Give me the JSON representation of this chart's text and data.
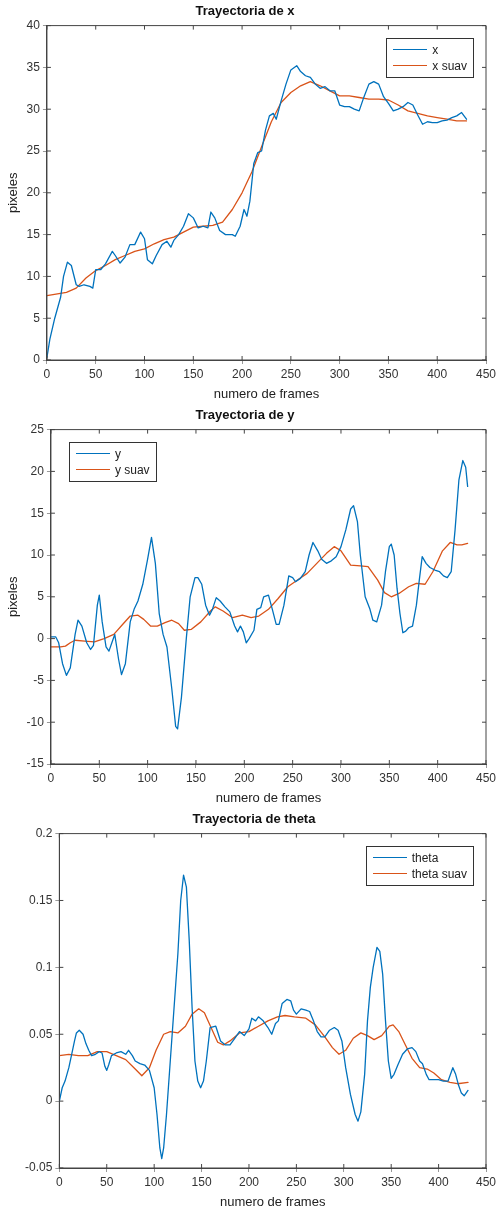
{
  "chart_data": [
    {
      "type": "line",
      "title": "Trayectoria de x",
      "xlabel": "numero de frames",
      "ylabel": "pixeles",
      "xlim": [
        0,
        450
      ],
      "xticks": [
        0,
        50,
        100,
        150,
        200,
        250,
        300,
        350,
        400,
        450
      ],
      "ylim": [
        0,
        40
      ],
      "yticks": [
        0,
        5,
        10,
        15,
        20,
        25,
        30,
        35,
        40
      ],
      "grid": false,
      "legend": "top right",
      "marker": "none",
      "line_style": "solid",
      "series": [
        {
          "name": "x",
          "color": "#0072bd",
          "x": [
            0,
            3,
            8,
            14,
            17,
            21,
            25,
            30,
            33,
            38,
            44,
            47,
            50,
            55,
            60,
            67,
            70,
            75,
            80,
            85,
            90,
            96,
            100,
            103,
            108,
            112,
            118,
            123,
            127,
            130,
            135,
            140,
            145,
            150,
            155,
            160,
            165,
            168,
            172,
            177,
            183,
            190,
            193,
            198,
            202,
            205,
            208,
            212,
            216,
            220,
            224,
            228,
            232,
            235,
            240,
            245,
            250,
            256,
            260,
            265,
            270,
            275,
            280,
            285,
            290,
            295,
            300,
            305,
            310,
            315,
            320,
            325,
            330,
            335,
            340,
            345,
            350,
            355,
            360,
            365,
            370,
            375,
            380,
            385,
            390,
            395,
            400,
            405,
            410,
            415,
            420,
            425,
            430
          ],
          "values": [
            0.3,
            2.5,
            5,
            7.5,
            10,
            11.7,
            11.3,
            9,
            8.8,
            9,
            8.8,
            8.6,
            10.8,
            10.8,
            11.5,
            13,
            12.5,
            11.6,
            12.3,
            13.8,
            13.8,
            15.3,
            14.5,
            12,
            11.5,
            12.5,
            13.8,
            14.2,
            13.5,
            14.3,
            15,
            16,
            17.5,
            17,
            15.8,
            16,
            15.8,
            17.7,
            17,
            15.5,
            15,
            15,
            14.8,
            16,
            18,
            17.2,
            19,
            23.5,
            24.8,
            25,
            27.5,
            29.2,
            29.5,
            28.8,
            31,
            33,
            34.7,
            35.2,
            34.5,
            34,
            33.8,
            33,
            32.5,
            32.7,
            32.2,
            32.2,
            30.5,
            30.3,
            30.3,
            30,
            29.8,
            31.5,
            33,
            33.3,
            33,
            31.5,
            30.7,
            29.8,
            30,
            30.3,
            30.8,
            30.5,
            29.3,
            28.2,
            28.5,
            28.4,
            28.4,
            28.6,
            28.7,
            29,
            29.2,
            29.6,
            28.8
          ]
        },
        {
          "name": "x suav",
          "color": "#d95319",
          "x": [
            0,
            20,
            30,
            40,
            50,
            60,
            70,
            80,
            90,
            100,
            110,
            120,
            130,
            140,
            150,
            160,
            170,
            180,
            190,
            200,
            210,
            220,
            230,
            240,
            250,
            260,
            270,
            280,
            290,
            300,
            310,
            320,
            330,
            340,
            350,
            360,
            370,
            380,
            390,
            400,
            410,
            420,
            430
          ],
          "values": [
            7.7,
            8.1,
            8.6,
            9.8,
            10.7,
            11.3,
            12,
            12.5,
            13,
            13.3,
            13.9,
            14.4,
            14.7,
            15.3,
            15.9,
            16,
            16.1,
            16.5,
            18,
            20,
            22.5,
            25.5,
            28.5,
            30.8,
            32,
            32.8,
            33.3,
            32.8,
            32.2,
            31.6,
            31.6,
            31.4,
            31.2,
            31.2,
            31.1,
            30.5,
            29.8,
            29.5,
            29.2,
            29,
            28.8,
            28.6,
            28.6
          ]
        }
      ]
    },
    {
      "type": "line",
      "title": "Trayectoria de y",
      "xlabel": "numero de frames",
      "ylabel": "pixeles",
      "xlim": [
        0,
        450
      ],
      "xticks": [
        0,
        50,
        100,
        150,
        200,
        250,
        300,
        350,
        400,
        450
      ],
      "ylim": [
        -15,
        25
      ],
      "yticks": [
        -15,
        -10,
        -5,
        0,
        5,
        10,
        15,
        20,
        25
      ],
      "grid": false,
      "legend": "top left",
      "marker": "none",
      "line_style": "solid",
      "series": [
        {
          "name": "y",
          "color": "#0072bd",
          "x": [
            0,
            5,
            8,
            12,
            16,
            20,
            25,
            28,
            32,
            37,
            41,
            44,
            48,
            50,
            53,
            57,
            60,
            63,
            66,
            70,
            73,
            77,
            82,
            86,
            90,
            95,
            100,
            104,
            108,
            112,
            116,
            120,
            125,
            129,
            131,
            135,
            140,
            144,
            149,
            152,
            156,
            160,
            164,
            167,
            171,
            175,
            180,
            185,
            190,
            193,
            196,
            199,
            202,
            205,
            210,
            213,
            217,
            220,
            225,
            229,
            233,
            236,
            241,
            246,
            250,
            253,
            258,
            263,
            267,
            271,
            276,
            280,
            285,
            290,
            295,
            300,
            305,
            310,
            313,
            317,
            320,
            325,
            330,
            333,
            337,
            342,
            346,
            350,
            352,
            355,
            358,
            361,
            364,
            367,
            370,
            374,
            378,
            381,
            384,
            388,
            392,
            397,
            402,
            406,
            410,
            414,
            418,
            422,
            426,
            429,
            431
          ],
          "values": [
            0.2,
            0.2,
            -0.5,
            -3,
            -4.4,
            -3.5,
            0.5,
            2.2,
            1.5,
            -0.5,
            -1.3,
            -0.8,
            4,
            5.2,
            2,
            -1,
            -1.5,
            -0.5,
            0.5,
            -2.5,
            -4.3,
            -3,
            2,
            3.5,
            4.5,
            6.5,
            9.5,
            12.1,
            9,
            3,
            0.5,
            -1,
            -6,
            -10.5,
            -10.8,
            -7,
            0,
            5,
            7.3,
            7.3,
            6.5,
            4,
            2.8,
            3.5,
            4.9,
            4.5,
            3.8,
            3.2,
            1.5,
            0.8,
            1.5,
            0.8,
            -0.5,
            0,
            1,
            3.5,
            3.7,
            5,
            5.2,
            3.5,
            1.7,
            1.7,
            4,
            7.5,
            7.3,
            6.8,
            7.2,
            8,
            10,
            11.5,
            10.5,
            9.5,
            9,
            9.3,
            9.8,
            11,
            13,
            15.5,
            15.9,
            14,
            10,
            5,
            3.5,
            2.2,
            2,
            4,
            8,
            11,
            11.3,
            10,
            6,
            3,
            0.7,
            0.9,
            1.3,
            1.5,
            4,
            7,
            9.8,
            9,
            8.5,
            8.2,
            8,
            7.5,
            7.3,
            8,
            13,
            19,
            21.3,
            20.5,
            18.2
          ]
        },
        {
          "name": "y suav",
          "color": "#d95319",
          "x": [
            0,
            10,
            15,
            20,
            25,
            35,
            45,
            55,
            65,
            75,
            82,
            90,
            96,
            103,
            110,
            118,
            125,
            132,
            138,
            145,
            155,
            165,
            170,
            178,
            188,
            198,
            207,
            215,
            225,
            235,
            245,
            255,
            265,
            275,
            285,
            293,
            300,
            310,
            320,
            328,
            338,
            345,
            352,
            360,
            370,
            378,
            387,
            395,
            405,
            413,
            420,
            425,
            431
          ],
          "values": [
            -1,
            -1,
            -0.9,
            -0.5,
            -0.2,
            -0.3,
            -0.4,
            0,
            0.5,
            1.8,
            2.7,
            2.8,
            2.3,
            1.5,
            1.5,
            1.9,
            2.2,
            1.8,
            1,
            1.1,
            2,
            3.3,
            3.8,
            3.3,
            2.5,
            2.8,
            2.5,
            2.7,
            3.5,
            4.8,
            6.2,
            7,
            7.8,
            9,
            10.2,
            11,
            10.5,
            8.8,
            8.7,
            8.6,
            7,
            5.5,
            5,
            5.4,
            6.2,
            6.6,
            6.5,
            8,
            10.5,
            11.5,
            11.2,
            11.2,
            11.4
          ]
        }
      ]
    },
    {
      "type": "line",
      "title": "Trayectoria de theta",
      "xlabel": "numero de frames",
      "xlim": [
        0,
        450
      ],
      "xticks": [
        0,
        50,
        100,
        150,
        200,
        250,
        300,
        350,
        400,
        450
      ],
      "ylim": [
        -0.05,
        0.2
      ],
      "yticks": [
        -0.05,
        0,
        0.05,
        0.1,
        0.15,
        0.2
      ],
      "grid": false,
      "legend": "top right",
      "marker": "none",
      "line_style": "solid",
      "series": [
        {
          "name": "theta",
          "color": "#0072bd",
          "x": [
            0,
            3,
            6,
            10,
            13,
            16,
            18,
            21,
            25,
            28,
            31,
            34,
            38,
            42,
            45,
            48,
            50,
            52,
            55,
            60,
            65,
            70,
            73,
            77,
            80,
            85,
            90,
            95,
            100,
            103,
            106,
            108,
            110,
            113,
            117,
            121,
            125,
            128,
            131,
            134,
            137,
            140,
            143,
            146,
            149,
            152,
            155,
            159,
            165,
            170,
            175,
            180,
            185,
            190,
            195,
            200,
            203,
            207,
            210,
            215,
            220,
            224,
            228,
            231,
            235,
            240,
            244,
            247,
            250,
            255,
            260,
            264,
            268,
            272,
            276,
            280,
            285,
            290,
            294,
            298,
            302,
            307,
            312,
            315,
            318,
            322,
            325,
            328,
            331,
            335,
            338,
            341,
            344,
            347,
            350,
            353,
            357,
            362,
            367,
            372,
            376,
            380,
            383,
            387,
            390,
            395,
            400,
            405,
            410,
            415,
            418,
            421,
            424,
            427,
            431
          ],
          "values": [
            0,
            0.01,
            0.015,
            0.025,
            0.035,
            0.045,
            0.051,
            0.053,
            0.05,
            0.043,
            0.038,
            0.034,
            0.035,
            0.037,
            0.036,
            0.026,
            0.023,
            0.027,
            0.034,
            0.036,
            0.037,
            0.035,
            0.038,
            0.034,
            0.03,
            0.028,
            0.027,
            0.023,
            0.01,
            -0.01,
            -0.035,
            -0.043,
            -0.035,
            -0.01,
            0.03,
            0.07,
            0.11,
            0.15,
            0.169,
            0.16,
            0.12,
            0.07,
            0.03,
            0.015,
            0.01,
            0.015,
            0.03,
            0.055,
            0.056,
            0.045,
            0.042,
            0.042,
            0.047,
            0.052,
            0.049,
            0.054,
            0.062,
            0.06,
            0.063,
            0.06,
            0.055,
            0.05,
            0.058,
            0.06,
            0.073,
            0.076,
            0.075,
            0.068,
            0.065,
            0.069,
            0.068,
            0.067,
            0.06,
            0.052,
            0.048,
            0.048,
            0.053,
            0.055,
            0.053,
            0.045,
            0.025,
            0.005,
            -0.01,
            -0.015,
            -0.008,
            0.02,
            0.06,
            0.085,
            0.1,
            0.115,
            0.112,
            0.095,
            0.06,
            0.03,
            0.017,
            0.02,
            0.027,
            0.035,
            0.039,
            0.04,
            0.037,
            0.03,
            0.028,
            0.02,
            0.016,
            0.016,
            0.016,
            0.015,
            0.015,
            0.025,
            0.02,
            0.012,
            0.006,
            0.004,
            0.008
          ]
        },
        {
          "name": "theta suav",
          "color": "#d95319",
          "x": [
            0,
            10,
            20,
            30,
            40,
            50,
            60,
            70,
            80,
            87,
            95,
            102,
            110,
            117,
            125,
            133,
            140,
            147,
            153,
            160,
            167,
            173,
            180,
            190,
            200,
            210,
            220,
            230,
            238,
            248,
            260,
            270,
            280,
            288,
            295,
            302,
            310,
            318,
            325,
            332,
            340,
            348,
            352,
            358,
            365,
            372,
            380,
            388,
            395,
            403,
            412,
            420,
            431
          ],
          "values": [
            0.034,
            0.035,
            0.034,
            0.034,
            0.037,
            0.037,
            0.034,
            0.031,
            0.024,
            0.019,
            0.025,
            0.038,
            0.05,
            0.052,
            0.051,
            0.056,
            0.065,
            0.069,
            0.066,
            0.055,
            0.044,
            0.042,
            0.045,
            0.051,
            0.052,
            0.056,
            0.06,
            0.063,
            0.064,
            0.063,
            0.062,
            0.057,
            0.048,
            0.04,
            0.035,
            0.038,
            0.047,
            0.051,
            0.049,
            0.046,
            0.049,
            0.056,
            0.057,
            0.052,
            0.042,
            0.032,
            0.025,
            0.024,
            0.021,
            0.016,
            0.014,
            0.013,
            0.014
          ]
        }
      ]
    }
  ]
}
